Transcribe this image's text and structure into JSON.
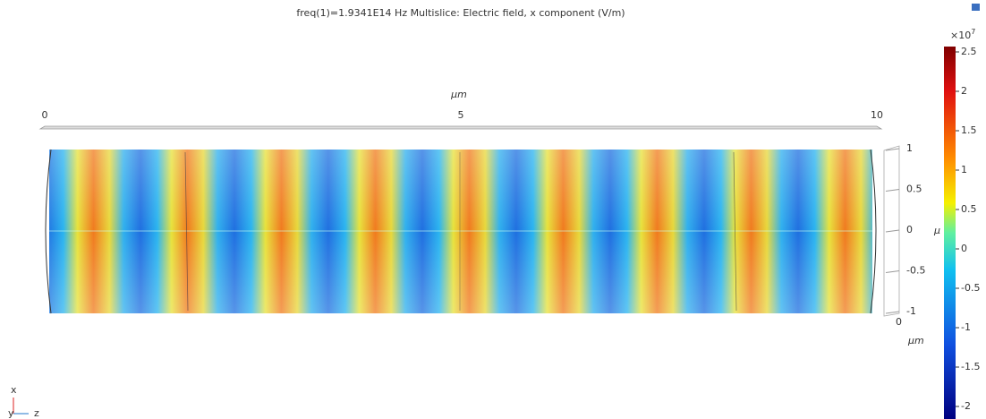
{
  "title": "freq(1)=1.9341E14 Hz   Multislice: Electric field, x component (V/m)",
  "top_axis": {
    "unit": "μm",
    "ticks": [
      "0",
      "5",
      "10"
    ]
  },
  "side_axis": {
    "unit": "μm",
    "cut_label": "μ",
    "ticks": [
      "1",
      "0.5",
      "0",
      "-0.5",
      "-1"
    ],
    "origin": "0"
  },
  "colorbar": {
    "multiplier": "×10",
    "exponent": "7",
    "ticks": [
      "2.5",
      "2",
      "1.5",
      "1",
      "0.5",
      "0",
      "-0.5",
      "-1",
      "-1.5",
      "-2"
    ]
  },
  "triad": {
    "x": "x",
    "y": "y",
    "z": "z"
  }
}
